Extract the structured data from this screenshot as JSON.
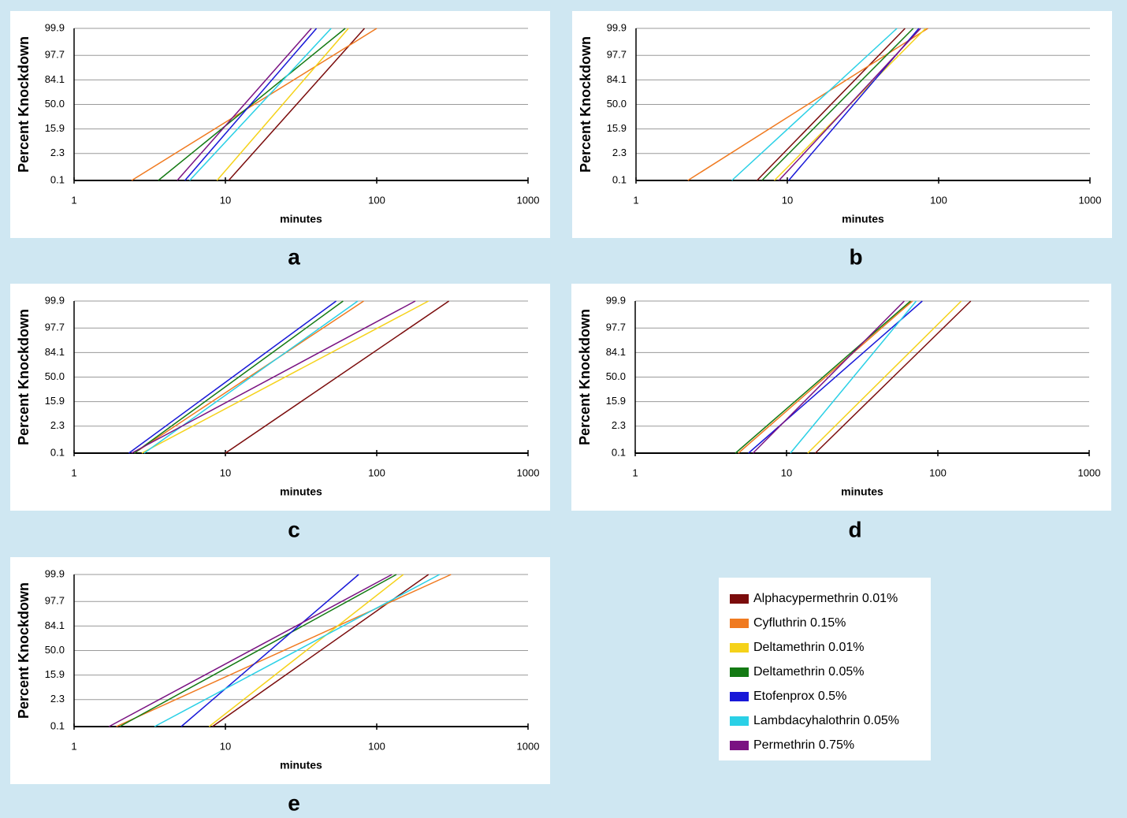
{
  "legend": [
    {
      "name": "Alphacypermethrin 0.01%",
      "color": "#7b0c0c"
    },
    {
      "name": "Cyfluthrin 0.15%",
      "color": "#f07a20"
    },
    {
      "name": "Deltamethrin 0.01%",
      "color": "#f5d21a"
    },
    {
      "name": "Deltamethrin 0.05%",
      "color": "#137a13"
    },
    {
      "name": "Etofenprox 0.5%",
      "color": "#1818d8"
    },
    {
      "name": "Lambdacyhalothrin 0.05%",
      "color": "#2ad0e6"
    },
    {
      "name": "Permethrin 0.75%",
      "color": "#7a1282"
    }
  ],
  "chart_data": [
    {
      "type": "line",
      "panel_label": "a",
      "y_label": "Percent Knockdown",
      "x_label": "minutes",
      "xlim": [
        1,
        1000
      ],
      "xticks": [
        1,
        10,
        100,
        1000
      ],
      "x_log": true,
      "ylim": [
        0.1,
        99.9
      ],
      "y_scale": "probit",
      "yticks": [
        0.1,
        2.3,
        15.9,
        {
          "value": 50,
          "label": "50.0"
        },
        84.1,
        97.7,
        99.9
      ],
      "grid": true,
      "series": [
        {
          "x": [
            10.5,
            83
          ],
          "values": [
            0.1,
            99.9
          ]
        },
        {
          "x": [
            2.4,
            100
          ],
          "values": [
            0.1,
            99.9
          ]
        },
        {
          "x": [
            8.8,
            65
          ],
          "values": [
            0.1,
            99.9
          ]
        },
        {
          "x": [
            3.6,
            62
          ],
          "values": [
            0.1,
            99.9
          ]
        },
        {
          "x": [
            5.4,
            40
          ],
          "values": [
            0.1,
            99.9
          ]
        },
        {
          "x": [
            5.8,
            50
          ],
          "values": [
            0.1,
            99.9
          ]
        },
        {
          "x": [
            4.8,
            37
          ],
          "values": [
            0.1,
            99.9
          ]
        }
      ]
    },
    {
      "type": "line",
      "panel_label": "b",
      "y_label": "Percent Knockdown",
      "x_label": "minutes",
      "xlim": [
        1,
        1000
      ],
      "xticks": [
        1,
        10,
        100,
        1000
      ],
      "x_log": true,
      "ylim": [
        0.1,
        99.9
      ],
      "y_scale": "probit",
      "yticks": [
        0.1,
        2.3,
        15.9,
        {
          "value": 50,
          "label": "50.0"
        },
        84.1,
        97.7,
        99.9
      ],
      "grid": true,
      "series": [
        {
          "x": [
            6.3,
            60
          ],
          "values": [
            0.1,
            99.9
          ]
        },
        {
          "x": [
            2.2,
            85
          ],
          "values": [
            0.1,
            99.9
          ]
        },
        {
          "x": [
            8.2,
            82
          ],
          "values": [
            0.1,
            99.9
          ]
        },
        {
          "x": [
            6.8,
            68
          ],
          "values": [
            0.1,
            99.9
          ]
        },
        {
          "x": [
            10.2,
            74
          ],
          "values": [
            0.1,
            99.9
          ]
        },
        {
          "x": [
            4.3,
            53
          ],
          "values": [
            0.1,
            99.9
          ]
        },
        {
          "x": [
            8.8,
            76
          ],
          "values": [
            0.1,
            99.9
          ]
        }
      ]
    },
    {
      "type": "line",
      "panel_label": "c",
      "y_label": "Percent Knockdown",
      "x_label": "minutes",
      "xlim": [
        1,
        1000
      ],
      "xticks": [
        1,
        10,
        100,
        1000
      ],
      "x_log": true,
      "ylim": [
        0.1,
        99.9
      ],
      "y_scale": "probit",
      "yticks": [
        0.1,
        2.3,
        15.9,
        {
          "value": 50,
          "label": "50.0"
        },
        84.1,
        97.7,
        99.9
      ],
      "grid": true,
      "series": [
        {
          "x": [
            10,
            300
          ],
          "values": [
            0.1,
            99.9
          ]
        },
        {
          "x": [
            2.5,
            82
          ],
          "values": [
            0.1,
            99.9
          ]
        },
        {
          "x": [
            2.8,
            220
          ],
          "values": [
            0.1,
            99.9
          ]
        },
        {
          "x": [
            2.5,
            60
          ],
          "values": [
            0.1,
            99.9
          ]
        },
        {
          "x": [
            2.3,
            54
          ],
          "values": [
            0.1,
            99.9
          ]
        },
        {
          "x": [
            2.9,
            75
          ],
          "values": [
            0.1,
            99.9
          ]
        },
        {
          "x": [
            2.4,
            180
          ],
          "values": [
            0.1,
            99.9
          ]
        }
      ]
    },
    {
      "type": "line",
      "panel_label": "d",
      "y_label": "Percent Knockdown",
      "x_label": "minutes",
      "xlim": [
        1,
        1000
      ],
      "xticks": [
        1,
        10,
        100,
        1000
      ],
      "x_log": true,
      "ylim": [
        0.1,
        99.9
      ],
      "y_scale": "probit",
      "yticks": [
        0.1,
        2.3,
        15.9,
        {
          "value": 50,
          "label": "50.0"
        },
        84.1,
        97.7,
        99.9
      ],
      "grid": true,
      "series": [
        {
          "x": [
            15.5,
            165
          ],
          "values": [
            0.1,
            99.9
          ]
        },
        {
          "x": [
            4.8,
            68
          ],
          "values": [
            0.1,
            99.9
          ]
        },
        {
          "x": [
            13.8,
            143
          ],
          "values": [
            0.1,
            99.9
          ]
        },
        {
          "x": [
            4.6,
            66
          ],
          "values": [
            0.1,
            99.9
          ]
        },
        {
          "x": [
            5.6,
            79
          ],
          "values": [
            0.1,
            99.9
          ]
        },
        {
          "x": [
            10.6,
            72
          ],
          "values": [
            0.1,
            99.9
          ]
        },
        {
          "x": [
            6.0,
            60
          ],
          "values": [
            0.1,
            99.9
          ]
        }
      ]
    },
    {
      "type": "line",
      "panel_label": "e",
      "y_label": "Percent Knockdown",
      "x_label": "minutes",
      "xlim": [
        1,
        1000
      ],
      "xticks": [
        1,
        10,
        100,
        1000
      ],
      "x_log": true,
      "ylim": [
        0.1,
        99.9
      ],
      "y_scale": "probit",
      "yticks": [
        0.1,
        2.3,
        15.9,
        {
          "value": 50,
          "label": "50.0"
        },
        84.1,
        97.7,
        99.9
      ],
      "grid": true,
      "series": [
        {
          "x": [
            8.2,
            220
          ],
          "values": [
            0.1,
            99.9
          ]
        },
        {
          "x": [
            1.9,
            310
          ],
          "values": [
            0.1,
            99.9
          ]
        },
        {
          "x": [
            7.8,
            150
          ],
          "values": [
            0.1,
            99.9
          ]
        },
        {
          "x": [
            2.0,
            135
          ],
          "values": [
            0.1,
            99.9
          ]
        },
        {
          "x": [
            5.1,
            76
          ],
          "values": [
            0.1,
            99.9
          ]
        },
        {
          "x": [
            3.4,
            260
          ],
          "values": [
            0.1,
            99.9
          ]
        },
        {
          "x": [
            1.7,
            126
          ],
          "values": [
            0.1,
            99.9
          ]
        }
      ]
    }
  ]
}
